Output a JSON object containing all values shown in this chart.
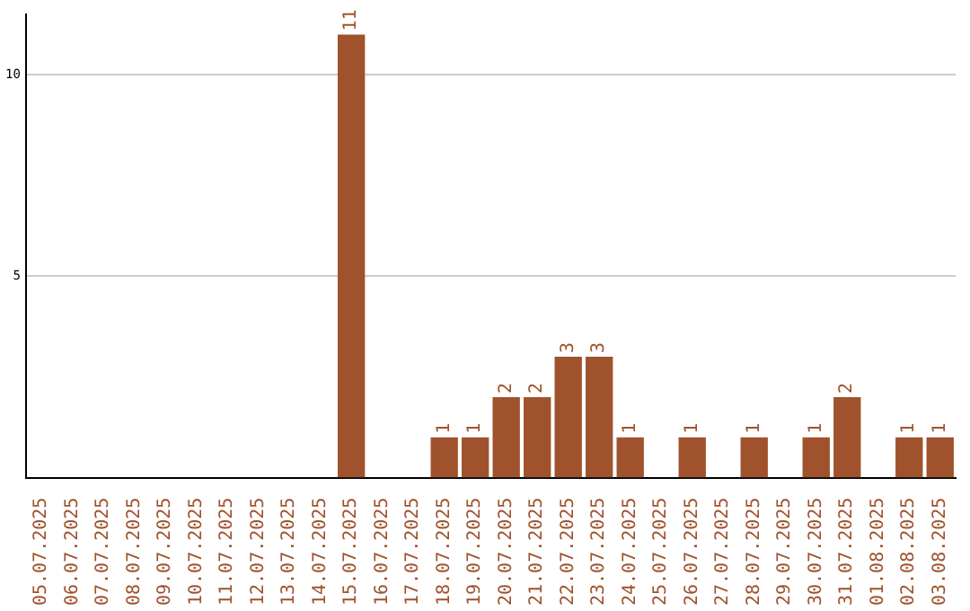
{
  "chart_data": {
    "type": "bar",
    "categories": [
      "05.07.2025",
      "06.07.2025",
      "07.07.2025",
      "08.07.2025",
      "09.07.2025",
      "10.07.2025",
      "11.07.2025",
      "12.07.2025",
      "13.07.2025",
      "14.07.2025",
      "15.07.2025",
      "16.07.2025",
      "17.07.2025",
      "18.07.2025",
      "19.07.2025",
      "20.07.2025",
      "21.07.2025",
      "22.07.2025",
      "23.07.2025",
      "24.07.2025",
      "25.07.2025",
      "26.07.2025",
      "27.07.2025",
      "28.07.2025",
      "29.07.2025",
      "30.07.2025",
      "31.07.2025",
      "01.08.2025",
      "02.08.2025",
      "03.08.2025"
    ],
    "values": [
      0,
      0,
      0,
      0,
      0,
      0,
      0,
      0,
      0,
      0,
      11,
      0,
      0,
      1,
      1,
      2,
      2,
      3,
      3,
      1,
      0,
      1,
      0,
      1,
      0,
      1,
      2,
      0,
      1,
      1
    ],
    "value_labels": [
      null,
      null,
      null,
      null,
      null,
      null,
      null,
      null,
      null,
      null,
      "11",
      null,
      null,
      "1",
      "1",
      "2",
      "2",
      "3",
      "3",
      "1",
      null,
      "1",
      null,
      "1",
      null,
      "1",
      "2",
      null,
      "1",
      "1"
    ],
    "color": "#a0522d",
    "ylim": [
      0,
      11.5
    ],
    "yticks": [
      5,
      10
    ],
    "grid": "y",
    "legend": false
  }
}
